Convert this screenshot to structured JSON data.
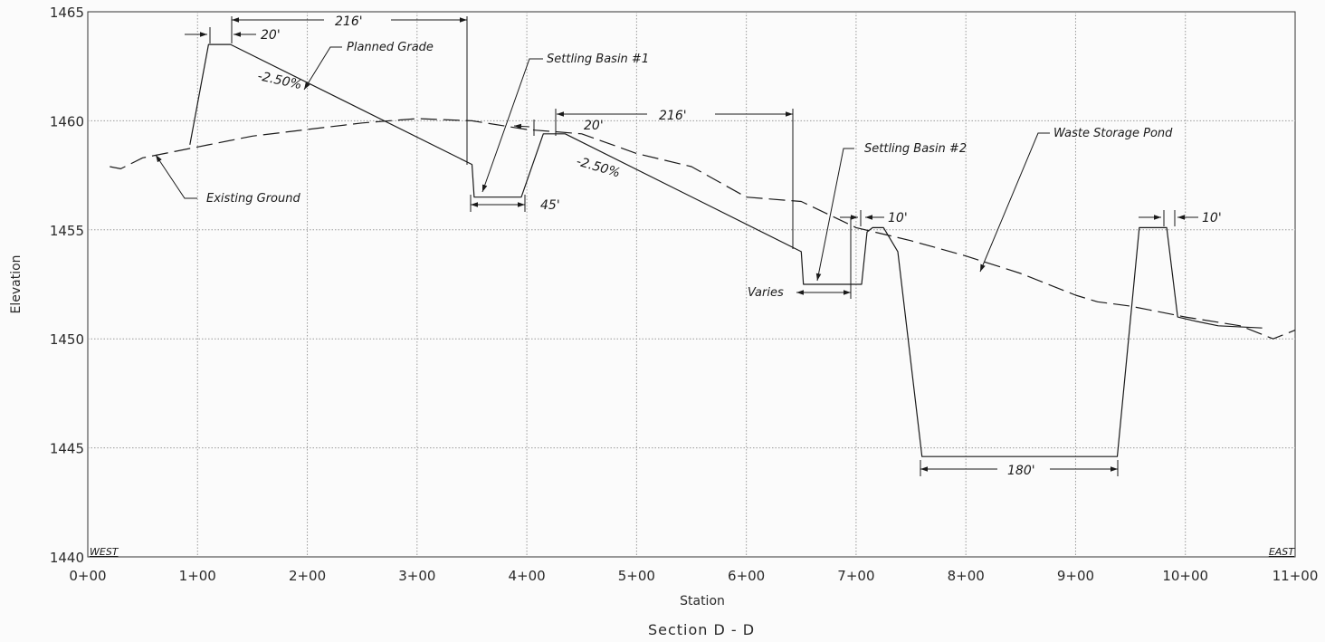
{
  "chart_data": {
    "type": "line",
    "title": "Section D - D",
    "xlabel": "Station",
    "ylabel": "Elevation",
    "xlim": [
      0,
      1100
    ],
    "ylim": [
      1440,
      1465
    ],
    "x_ticks": [
      0,
      100,
      200,
      300,
      400,
      500,
      600,
      700,
      800,
      900,
      1000,
      1100
    ],
    "x_tick_labels": [
      "0+00",
      "1+00",
      "2+00",
      "3+00",
      "4+00",
      "5+00",
      "6+00",
      "7+00",
      "8+00",
      "9+00",
      "10+00",
      "11+00"
    ],
    "y_ticks": [
      1440,
      1445,
      1450,
      1455,
      1460,
      1465
    ],
    "y_tick_labels": [
      "1440",
      "1445",
      "1450",
      "1455",
      "1460",
      "1465"
    ],
    "grid": true,
    "side_labels": {
      "left": "WEST",
      "right": "EAST"
    },
    "series": [
      {
        "name": "Existing Ground",
        "style": "dashed",
        "x": [
          20,
          30,
          50,
          80,
          110,
          150,
          200,
          250,
          300,
          350,
          400,
          450,
          500,
          550,
          600,
          650,
          700,
          750,
          800,
          850,
          900,
          920,
          950,
          1000,
          1050,
          1080,
          1100
        ],
        "y": [
          1457.9,
          1457.8,
          1458.3,
          1458.6,
          1458.9,
          1459.3,
          1459.6,
          1459.9,
          1460.1,
          1460.0,
          1459.6,
          1459.4,
          1458.5,
          1457.9,
          1456.5,
          1456.3,
          1455.1,
          1454.5,
          1453.8,
          1453.0,
          1452.0,
          1451.7,
          1451.5,
          1451.0,
          1450.6,
          1450.0,
          1450.4
        ]
      },
      {
        "name": "Planned Grade",
        "style": "solid",
        "x": [
          93,
          110,
          130,
          350,
          352,
          362,
          385,
          395,
          415,
          435,
          650,
          652,
          662,
          705,
          710,
          715,
          725,
          738,
          760,
          938,
          958,
          983,
          993,
          1010,
          1030,
          1070
        ],
        "y": [
          1458.9,
          1463.5,
          1463.5,
          1458.0,
          1456.5,
          1456.5,
          1456.5,
          1456.5,
          1459.4,
          1459.4,
          1454.0,
          1452.5,
          1452.5,
          1452.5,
          1454.9,
          1455.1,
          1455.1,
          1454.0,
          1444.6,
          1444.6,
          1455.1,
          1455.1,
          1451.0,
          1450.8,
          1450.6,
          1450.5
        ]
      }
    ],
    "annotations": [
      {
        "text": "Planned Grade",
        "x": 390,
        "y": 1463.3
      },
      {
        "text": "Settling Basin #1",
        "x": 560,
        "y": 1462.8
      },
      {
        "text": "Existing Ground",
        "x": 215,
        "y": 1456.4
      },
      {
        "text": "Settling Basin #2",
        "x": 840,
        "y": 1458.6
      },
      {
        "text": "Waste Storage Pond",
        "x": 1130,
        "y": 1459.0
      },
      {
        "text": "Varies",
        "x": 640,
        "y": 1452.0
      }
    ],
    "slopes": [
      "-2.50%",
      "-2.50%"
    ],
    "dimensions": [
      "216'",
      "20'",
      "216'",
      "20'",
      "45'",
      "10'",
      "10'",
      "180'"
    ]
  }
}
